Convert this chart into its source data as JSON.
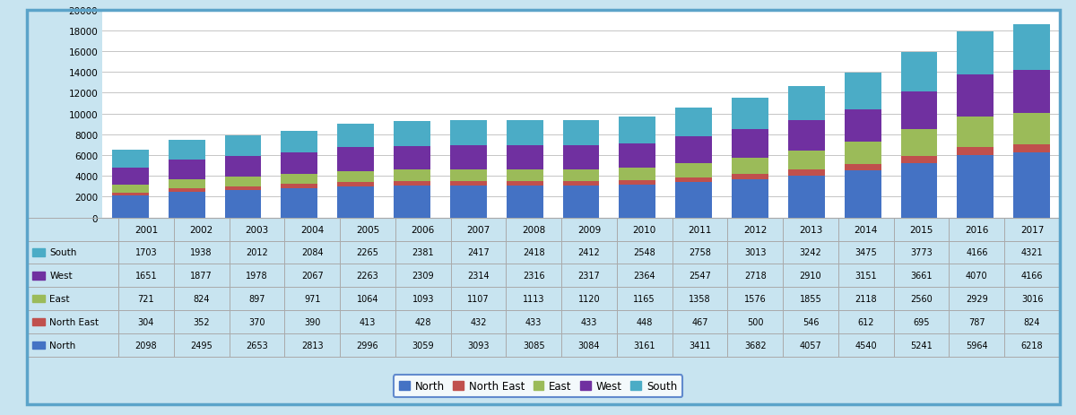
{
  "years": [
    2001,
    2002,
    2003,
    2004,
    2005,
    2006,
    2007,
    2008,
    2009,
    2010,
    2011,
    2012,
    2013,
    2014,
    2015,
    2016,
    2017
  ],
  "North": [
    2098,
    2495,
    2653,
    2813,
    2996,
    3059,
    3093,
    3085,
    3084,
    3161,
    3411,
    3682,
    4057,
    4540,
    5241,
    5964,
    6218
  ],
  "North East": [
    304,
    352,
    370,
    390,
    413,
    428,
    432,
    433,
    433,
    448,
    467,
    500,
    546,
    612,
    695,
    787,
    824
  ],
  "East": [
    721,
    824,
    897,
    971,
    1064,
    1093,
    1107,
    1113,
    1120,
    1165,
    1358,
    1576,
    1855,
    2118,
    2560,
    2929,
    3016
  ],
  "West": [
    1651,
    1877,
    1978,
    2067,
    2263,
    2309,
    2314,
    2316,
    2317,
    2364,
    2547,
    2718,
    2910,
    3151,
    3661,
    4070,
    4166
  ],
  "South": [
    1703,
    1938,
    2012,
    2084,
    2265,
    2381,
    2417,
    2418,
    2412,
    2548,
    2758,
    3013,
    3242,
    3475,
    3773,
    4166,
    4321
  ],
  "colors": {
    "North": "#4472C4",
    "North East": "#C0504D",
    "East": "#9BBB59",
    "West": "#7030A0",
    "South": "#4BACC6"
  },
  "ylim": [
    0,
    20000
  ],
  "yticks": [
    0,
    2000,
    4000,
    6000,
    8000,
    10000,
    12000,
    14000,
    16000,
    18000,
    20000
  ],
  "background_outer": "#C8E4F0",
  "background_chart": "#FFFFFF",
  "border_color": "#5BA3C9",
  "legend_order": [
    "North",
    "North East",
    "East",
    "West",
    "South"
  ],
  "table_rows_order": [
    "South",
    "West",
    "East",
    "North East",
    "North"
  ],
  "series_stack_order": [
    "North",
    "North East",
    "East",
    "West",
    "South"
  ]
}
